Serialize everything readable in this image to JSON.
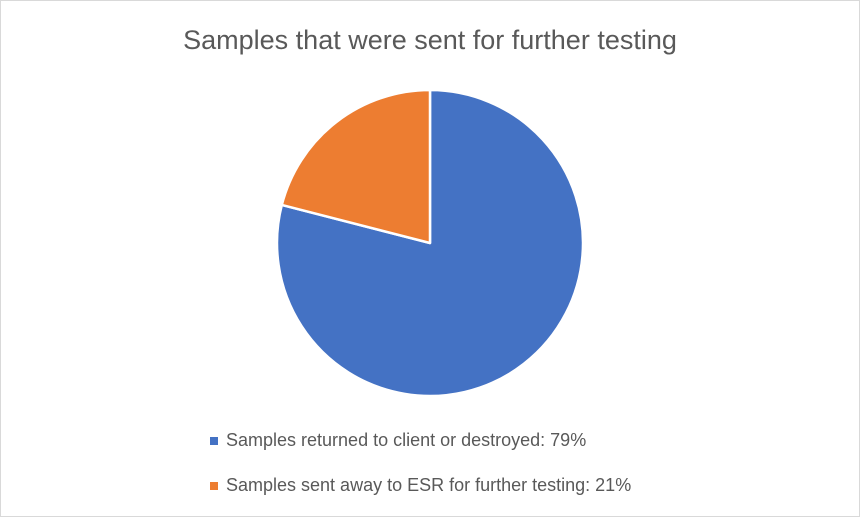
{
  "chart_data": {
    "type": "pie",
    "title": "Samples that were sent for further testing",
    "categories": [
      "Samples returned to client or destroyed: 79%",
      "Samples sent away to ESR for further testing: 21%"
    ],
    "values": [
      79,
      21
    ],
    "colors": [
      "#4472c4",
      "#ed7d31"
    ]
  }
}
